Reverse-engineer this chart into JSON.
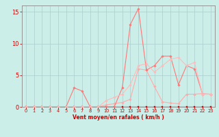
{
  "bg_color": "#cceee8",
  "grid_color": "#aacccc",
  "xlabel": "Vent moyen/en rafales ( km/h )",
  "xlim": [
    -0.5,
    23.5
  ],
  "ylim": [
    0,
    16
  ],
  "yticks": [
    0,
    5,
    10,
    15
  ],
  "xticks": [
    0,
    1,
    2,
    3,
    4,
    5,
    6,
    7,
    8,
    9,
    10,
    11,
    12,
    13,
    14,
    15,
    16,
    17,
    18,
    19,
    20,
    21,
    22,
    23
  ],
  "lines": [
    {
      "color": "#dd0000",
      "x": [
        0,
        1,
        2,
        3,
        4,
        5,
        6,
        7,
        8,
        9,
        10,
        11,
        12,
        13,
        14,
        15,
        16,
        17,
        18,
        19,
        20,
        21,
        22,
        23
      ],
      "y": [
        0,
        0,
        0,
        0,
        0,
        0,
        0,
        0,
        0,
        0,
        0,
        0,
        0,
        0,
        0,
        0,
        0,
        0,
        0,
        0,
        0,
        0,
        0,
        0
      ],
      "lw": 1.0,
      "marker": "s",
      "ms": 2.0
    },
    {
      "color": "#ffaaaa",
      "x": [
        0,
        1,
        2,
        3,
        4,
        5,
        6,
        7,
        8,
        9,
        10,
        11,
        12,
        13,
        14,
        15,
        16,
        17,
        18,
        19,
        20,
        21,
        22,
        23
      ],
      "y": [
        0,
        0,
        0,
        0,
        0,
        0,
        0,
        0,
        0,
        0,
        0.3,
        0.5,
        0.7,
        1.2,
        6.0,
        5.8,
        3.2,
        0.8,
        0.6,
        0.5,
        2.0,
        2.0,
        2.1,
        2.0
      ],
      "lw": 0.8,
      "marker": "D",
      "ms": 1.8
    },
    {
      "color": "#ff7777",
      "x": [
        0,
        1,
        2,
        3,
        4,
        5,
        6,
        7,
        8,
        9,
        10,
        11,
        12,
        13,
        14,
        15,
        16,
        17,
        18,
        19,
        20,
        21,
        22,
        23
      ],
      "y": [
        0,
        0,
        0,
        0,
        0,
        0,
        3.0,
        2.5,
        0,
        0,
        0,
        0,
        3.0,
        13.0,
        15.5,
        5.8,
        6.5,
        8.0,
        8.0,
        3.5,
        6.5,
        6.0,
        2.0,
        2.0
      ],
      "lw": 0.8,
      "marker": "D",
      "ms": 1.8
    },
    {
      "color": "#ffbbbb",
      "x": [
        0,
        1,
        2,
        3,
        4,
        5,
        6,
        7,
        8,
        9,
        10,
        11,
        12,
        13,
        14,
        15,
        16,
        17,
        18,
        19,
        20,
        21,
        22,
        23
      ],
      "y": [
        0,
        0,
        0,
        0,
        0,
        0,
        0,
        0,
        0,
        0,
        1.0,
        1.5,
        2.0,
        3.5,
        6.5,
        6.8,
        5.5,
        6.5,
        7.5,
        7.8,
        6.5,
        7.0,
        2.0,
        2.0
      ],
      "lw": 0.8,
      "marker": "D",
      "ms": 1.8
    }
  ],
  "tick_color": "#cc0000",
  "label_color": "#cc0000",
  "axis_color": "#888888",
  "xlabel_fontsize": 5.5,
  "xlabel_fontweight": "bold",
  "ytick_fontsize": 6,
  "xtick_fontsize": 4.8
}
